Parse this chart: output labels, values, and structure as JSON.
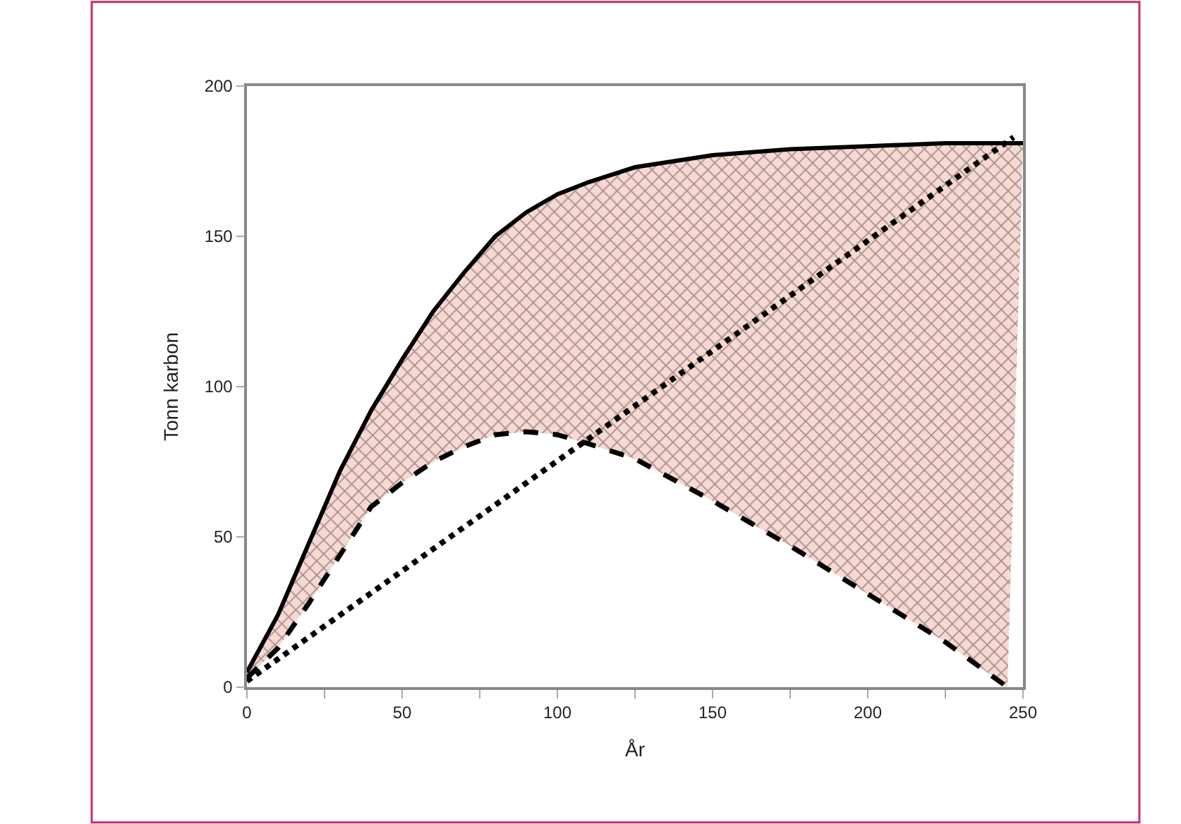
{
  "chart_data": {
    "type": "line",
    "xlabel": "År",
    "ylabel": "Tonn karbon",
    "xlim": [
      0,
      250
    ],
    "ylim": [
      0,
      200
    ],
    "xticks": [
      0,
      {
        "value": 25,
        "label": null
      },
      50,
      {
        "value": 75,
        "label": null
      },
      100,
      {
        "value": 125,
        "label": null
      },
      150,
      {
        "value": 175,
        "label": null
      },
      200,
      {
        "value": 225,
        "label": null
      },
      250
    ],
    "yticks": [
      0,
      50,
      100,
      150,
      200
    ],
    "marker": "none",
    "series": [
      {
        "color": "#000000",
        "line_style": "dashed",
        "x": [
          0,
          10,
          20,
          30,
          40,
          50,
          60,
          70,
          80,
          90,
          100,
          110,
          125,
          150,
          175,
          200,
          225,
          245
        ],
        "values": [
          3,
          13,
          28,
          44,
          60,
          68,
          75,
          80,
          84,
          85,
          84,
          81,
          76,
          62,
          47,
          31,
          15,
          0
        ]
      },
      {
        "type": "area",
        "color": "#000000",
        "line_style": "solid",
        "x": [
          0,
          10,
          20,
          30,
          40,
          50,
          60,
          70,
          80,
          90,
          100,
          110,
          125,
          150,
          175,
          200,
          225,
          245,
          250
        ],
        "values": [
          5,
          24,
          48,
          72,
          92,
          109,
          125,
          138,
          150,
          158,
          164,
          168,
          173,
          177,
          179,
          180,
          181,
          181,
          181
        ]
      },
      {
        "color": "#000000",
        "line_style": "dotted",
        "x": [
          0,
          247
        ],
        "values": [
          2,
          183
        ]
      }
    ]
  }
}
